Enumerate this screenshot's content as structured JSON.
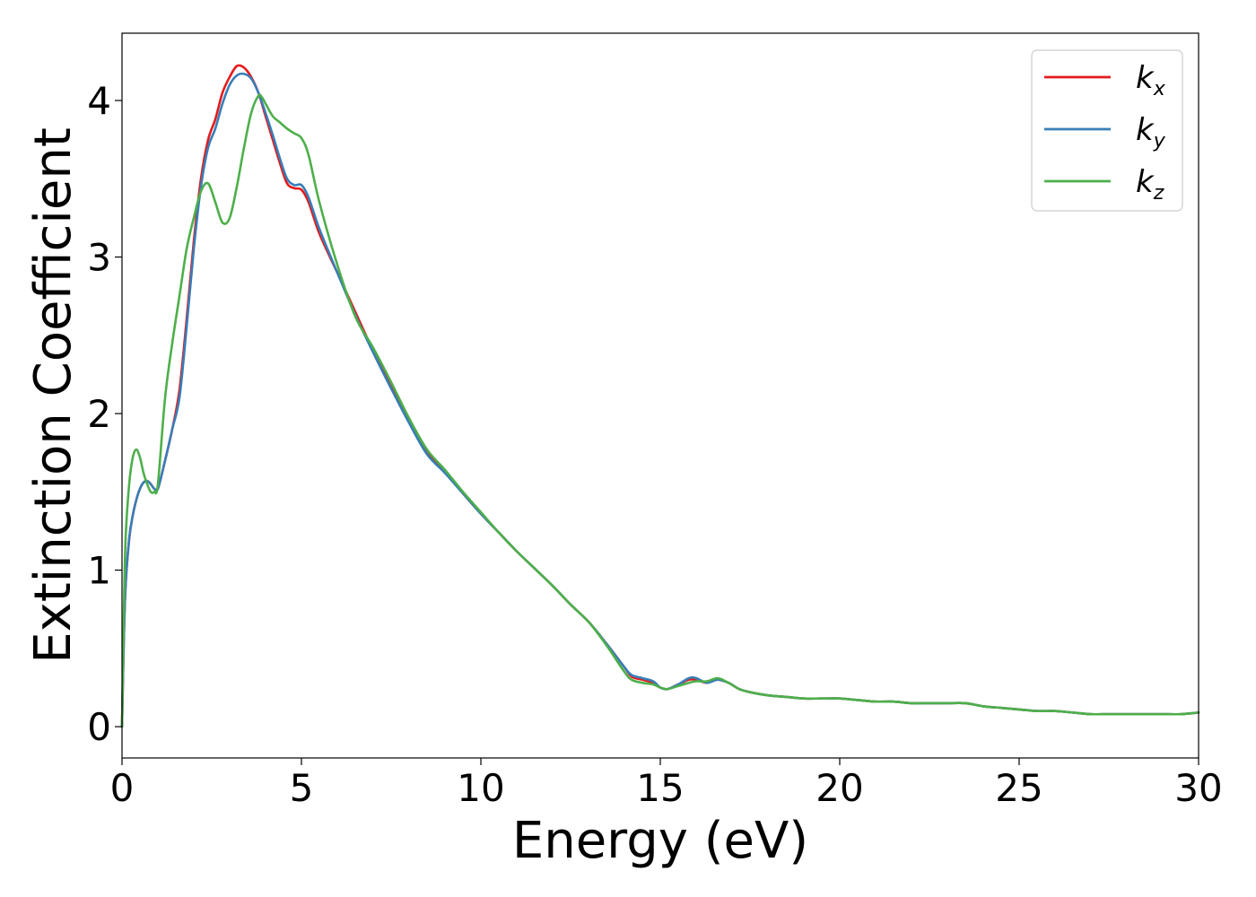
{
  "chart_data": {
    "type": "line",
    "xlabel": "Energy (eV)",
    "ylabel": "Extinction Coefficient",
    "xlim": [
      0,
      30
    ],
    "ylim": [
      -0.2,
      4.43
    ],
    "xticks": [
      0,
      5,
      10,
      15,
      20,
      25,
      30
    ],
    "yticks": [
      0,
      1,
      2,
      3,
      4
    ],
    "grid": false,
    "legend_position": "top-right",
    "series": [
      {
        "name": "k",
        "sub": "x",
        "color": "#e41a1c",
        "x": [
          0,
          0.05,
          0.1,
          0.2,
          0.3,
          0.4,
          0.5,
          0.6,
          0.7,
          0.8,
          0.9,
          1.0,
          1.2,
          1.4,
          1.6,
          1.8,
          2.0,
          2.2,
          2.4,
          2.6,
          2.8,
          3.0,
          3.2,
          3.4,
          3.6,
          3.8,
          4.0,
          4.2,
          4.4,
          4.6,
          4.8,
          5.0,
          5.2,
          5.5,
          6.0,
          6.5,
          7.0,
          7.5,
          8.0,
          8.5,
          9.0,
          9.5,
          10.0,
          10.5,
          11.0,
          11.5,
          12.0,
          12.5,
          13.0,
          13.5,
          14.0,
          14.2,
          14.5,
          14.8,
          15.0,
          15.2,
          15.5,
          15.8,
          16.0,
          16.3,
          16.6,
          16.9,
          17.2,
          17.5,
          18.0,
          18.5,
          19.0,
          19.5,
          20.0,
          20.5,
          21.0,
          21.5,
          22.0,
          22.5,
          23.0,
          23.5,
          24.0,
          24.5,
          25.0,
          25.5,
          26.0,
          26.5,
          27.0,
          27.5,
          28.0,
          28.5,
          29.0,
          29.5,
          30.0
        ],
        "y": [
          0.0,
          0.55,
          0.9,
          1.2,
          1.35,
          1.45,
          1.52,
          1.56,
          1.57,
          1.55,
          1.52,
          1.52,
          1.7,
          1.9,
          2.15,
          2.6,
          3.1,
          3.5,
          3.75,
          3.88,
          4.05,
          4.15,
          4.22,
          4.21,
          4.15,
          4.05,
          3.9,
          3.75,
          3.6,
          3.47,
          3.44,
          3.43,
          3.35,
          3.15,
          2.9,
          2.65,
          2.4,
          2.17,
          1.95,
          1.75,
          1.63,
          1.49,
          1.36,
          1.24,
          1.12,
          1.01,
          0.9,
          0.78,
          0.67,
          0.53,
          0.38,
          0.32,
          0.3,
          0.28,
          0.25,
          0.24,
          0.27,
          0.3,
          0.3,
          0.28,
          0.3,
          0.28,
          0.24,
          0.22,
          0.2,
          0.19,
          0.18,
          0.18,
          0.18,
          0.17,
          0.16,
          0.16,
          0.15,
          0.15,
          0.15,
          0.15,
          0.13,
          0.12,
          0.11,
          0.1,
          0.1,
          0.09,
          0.08,
          0.08,
          0.08,
          0.08,
          0.08,
          0.08,
          0.09
        ]
      },
      {
        "name": "k",
        "sub": "y",
        "color": "#377eb8",
        "x": [
          0,
          0.05,
          0.1,
          0.2,
          0.3,
          0.4,
          0.5,
          0.6,
          0.7,
          0.8,
          0.9,
          1.0,
          1.2,
          1.4,
          1.6,
          1.8,
          2.0,
          2.2,
          2.4,
          2.6,
          2.8,
          3.0,
          3.2,
          3.4,
          3.6,
          3.8,
          4.0,
          4.2,
          4.4,
          4.6,
          4.8,
          5.0,
          5.2,
          5.5,
          6.0,
          6.5,
          7.0,
          7.5,
          8.0,
          8.5,
          9.0,
          9.5,
          10.0,
          10.5,
          11.0,
          11.5,
          12.0,
          12.5,
          13.0,
          13.5,
          14.0,
          14.2,
          14.5,
          14.8,
          15.0,
          15.2,
          15.5,
          15.8,
          16.0,
          16.3,
          16.6,
          16.9,
          17.2,
          17.5,
          18.0,
          18.5,
          19.0,
          19.5,
          20.0,
          20.5,
          21.0,
          21.5,
          22.0,
          22.5,
          23.0,
          23.5,
          24.0,
          24.5,
          25.0,
          25.5,
          26.0,
          26.5,
          27.0,
          27.5,
          28.0,
          28.5,
          29.0,
          29.5,
          30.0
        ],
        "y": [
          0.0,
          0.55,
          0.9,
          1.2,
          1.35,
          1.45,
          1.52,
          1.56,
          1.57,
          1.55,
          1.52,
          1.52,
          1.7,
          1.9,
          2.1,
          2.55,
          3.05,
          3.45,
          3.7,
          3.82,
          3.98,
          4.1,
          4.16,
          4.17,
          4.14,
          4.05,
          3.92,
          3.78,
          3.63,
          3.5,
          3.46,
          3.46,
          3.38,
          3.18,
          2.9,
          2.63,
          2.39,
          2.16,
          1.94,
          1.74,
          1.62,
          1.49,
          1.36,
          1.24,
          1.12,
          1.01,
          0.9,
          0.78,
          0.67,
          0.53,
          0.38,
          0.33,
          0.31,
          0.29,
          0.25,
          0.24,
          0.27,
          0.31,
          0.31,
          0.28,
          0.3,
          0.28,
          0.24,
          0.22,
          0.2,
          0.19,
          0.18,
          0.18,
          0.18,
          0.17,
          0.16,
          0.16,
          0.15,
          0.15,
          0.15,
          0.15,
          0.13,
          0.12,
          0.11,
          0.1,
          0.1,
          0.09,
          0.08,
          0.08,
          0.08,
          0.08,
          0.08,
          0.08,
          0.09
        ]
      },
      {
        "name": "k",
        "sub": "z",
        "color": "#4daf4a",
        "x": [
          0,
          0.05,
          0.1,
          0.2,
          0.3,
          0.4,
          0.5,
          0.6,
          0.7,
          0.8,
          0.9,
          1.0,
          1.2,
          1.4,
          1.6,
          1.8,
          2.0,
          2.2,
          2.4,
          2.6,
          2.8,
          3.0,
          3.2,
          3.4,
          3.6,
          3.8,
          3.9,
          4.0,
          4.2,
          4.4,
          4.6,
          4.8,
          5.0,
          5.2,
          5.5,
          6.0,
          6.5,
          7.0,
          7.5,
          8.0,
          8.5,
          9.0,
          9.5,
          10.0,
          10.5,
          11.0,
          11.5,
          12.0,
          12.5,
          13.0,
          13.5,
          14.0,
          14.2,
          14.5,
          14.8,
          15.0,
          15.2,
          15.5,
          15.8,
          16.0,
          16.3,
          16.6,
          16.9,
          17.2,
          17.5,
          18.0,
          18.5,
          19.0,
          19.5,
          20.0,
          20.5,
          21.0,
          21.5,
          22.0,
          22.5,
          23.0,
          23.5,
          24.0,
          24.5,
          25.0,
          25.5,
          26.0,
          26.5,
          27.0,
          27.5,
          28.0,
          28.5,
          29.0,
          29.5,
          30.0
        ],
        "y": [
          0.0,
          0.7,
          1.2,
          1.55,
          1.72,
          1.77,
          1.72,
          1.62,
          1.55,
          1.5,
          1.5,
          1.55,
          2.1,
          2.45,
          2.75,
          3.05,
          3.25,
          3.42,
          3.47,
          3.35,
          3.22,
          3.25,
          3.45,
          3.7,
          3.92,
          4.03,
          4.02,
          3.98,
          3.9,
          3.86,
          3.82,
          3.79,
          3.76,
          3.65,
          3.35,
          2.95,
          2.62,
          2.42,
          2.2,
          1.97,
          1.77,
          1.64,
          1.5,
          1.37,
          1.24,
          1.12,
          1.01,
          0.9,
          0.78,
          0.67,
          0.52,
          0.35,
          0.3,
          0.28,
          0.27,
          0.25,
          0.24,
          0.26,
          0.28,
          0.29,
          0.29,
          0.31,
          0.28,
          0.24,
          0.22,
          0.2,
          0.19,
          0.18,
          0.18,
          0.18,
          0.17,
          0.16,
          0.16,
          0.15,
          0.15,
          0.15,
          0.15,
          0.13,
          0.12,
          0.11,
          0.1,
          0.1,
          0.09,
          0.08,
          0.08,
          0.08,
          0.08,
          0.08,
          0.08,
          0.09
        ]
      }
    ]
  }
}
